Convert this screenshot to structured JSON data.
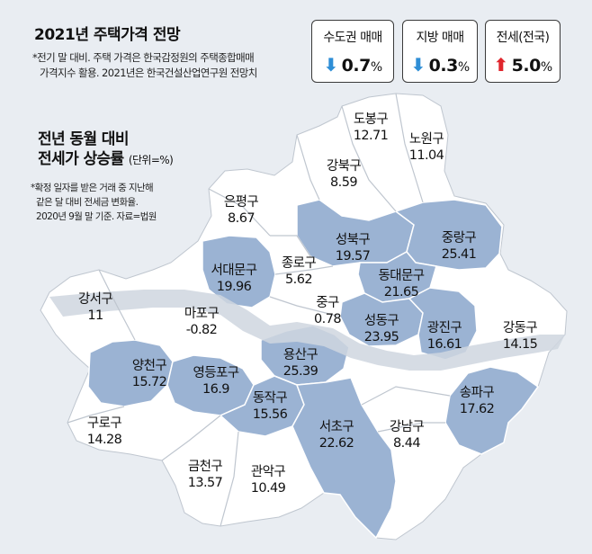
{
  "header": {
    "title": "2021년 주택가격 전망",
    "note_line1": "*전기 말 대비. 주택 가격은 한국감정원의 주택종합매매",
    "note_line2": "가격지수 활용. 2021년은 한국건설산업연구원 전망치"
  },
  "forecast_cards": [
    {
      "label": "수도권 매매",
      "direction": "down",
      "value": "0.7",
      "unit": "%",
      "arrow": "⬇",
      "arrow_color": "#2e8ed6"
    },
    {
      "label": "지방 매매",
      "direction": "down",
      "value": "0.3",
      "unit": "%",
      "arrow": "⬇",
      "arrow_color": "#2e8ed6"
    },
    {
      "label": "전세(전국)",
      "direction": "up",
      "value": "5.0",
      "unit": "%",
      "arrow": "⬆",
      "arrow_color": "#e0262d"
    }
  ],
  "legend": {
    "title_line1": "전년 동월 대비",
    "title_line2": "전세가 상승률",
    "unit": "(단위=%)",
    "note_line1": "*확정 일자를 받은 거래 중 지난해",
    "note_line2": "같은 달 대비 전세금 변화율.",
    "note_line3": "2020년 9월 말 기준. 자료=법원"
  },
  "colors": {
    "background": "#e9edf2",
    "land_white": "#ffffff",
    "land_blue": "#9bb3d3",
    "river": "#cfd6df",
    "border": "#bfc6cf"
  },
  "districts": [
    {
      "name": "도봉구",
      "value": "12.71",
      "shaded": false
    },
    {
      "name": "노원구",
      "value": "11.04",
      "shaded": false
    },
    {
      "name": "강북구",
      "value": "8.59",
      "shaded": false
    },
    {
      "name": "은평구",
      "value": "8.67",
      "shaded": false
    },
    {
      "name": "성북구",
      "value": "19.57",
      "shaded": true
    },
    {
      "name": "중랑구",
      "value": "25.41",
      "shaded": true
    },
    {
      "name": "종로구",
      "value": "5.62",
      "shaded": false
    },
    {
      "name": "서대문구",
      "value": "19.96",
      "shaded": true
    },
    {
      "name": "동대문구",
      "value": "21.65",
      "shaded": true
    },
    {
      "name": "중구",
      "value": "0.78",
      "shaded": false
    },
    {
      "name": "강서구",
      "value": "11",
      "shaded": false
    },
    {
      "name": "마포구",
      "value": "-0.82",
      "shaded": false
    },
    {
      "name": "성동구",
      "value": "23.95",
      "shaded": true
    },
    {
      "name": "광진구",
      "value": "16.61",
      "shaded": true
    },
    {
      "name": "강동구",
      "value": "14.15",
      "shaded": false
    },
    {
      "name": "양천구",
      "value": "15.72",
      "shaded": true
    },
    {
      "name": "영등포구",
      "value": "16.9",
      "shaded": true
    },
    {
      "name": "용산구",
      "value": "25.39",
      "shaded": true
    },
    {
      "name": "동작구",
      "value": "15.56",
      "shaded": true
    },
    {
      "name": "송파구",
      "value": "17.62",
      "shaded": true
    },
    {
      "name": "구로구",
      "value": "14.28",
      "shaded": false
    },
    {
      "name": "서초구",
      "value": "22.62",
      "shaded": true
    },
    {
      "name": "강남구",
      "value": "8.44",
      "shaded": false
    },
    {
      "name": "금천구",
      "value": "13.57",
      "shaded": false
    },
    {
      "name": "관악구",
      "value": "10.49",
      "shaded": false
    }
  ]
}
